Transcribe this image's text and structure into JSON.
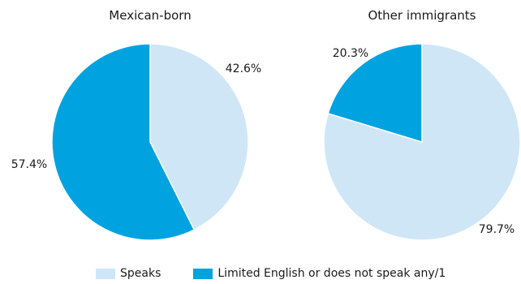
{
  "colors": {
    "speaks": "#cfe6f7",
    "limited": "#00a3e0",
    "edge": "#ffffff"
  },
  "chart_data": [
    {
      "type": "pie",
      "title": "Mexican-born",
      "slices": [
        {
          "key": "speaks",
          "value": 42.6,
          "label": "42.6%"
        },
        {
          "key": "limited",
          "value": 57.4,
          "label": "57.4%"
        }
      ],
      "start_angle_deg": 0,
      "direction": "clockwise"
    },
    {
      "type": "pie",
      "title": "Other immigrants",
      "slices": [
        {
          "key": "speaks",
          "value": 79.7,
          "label": "79.7%"
        },
        {
          "key": "limited",
          "value": 20.3,
          "label": "20.3%"
        }
      ],
      "start_angle_deg": 0,
      "direction": "clockwise"
    }
  ],
  "legend": {
    "placement": "bottom",
    "items": [
      {
        "key": "speaks",
        "label": "Speaks"
      },
      {
        "key": "limited",
        "label": "Limited English or does not speak any/1"
      }
    ]
  }
}
